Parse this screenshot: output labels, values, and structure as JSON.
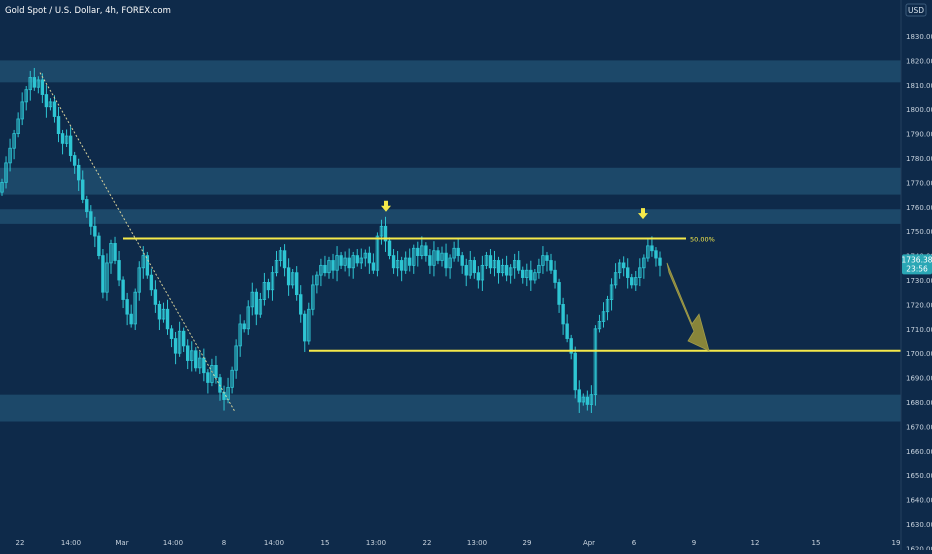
{
  "header": {
    "title": "Gold Spot / U.S. Dollar, 4h, FOREX.com"
  },
  "price_axis": {
    "currency": "USD",
    "price_tag": "1736.38",
    "countdown": "23:56"
  },
  "colors": {
    "background": "#0e2a4a",
    "zone": "#1f4e6f",
    "candle": "#2ec5d3",
    "level": "#f5e94a",
    "arrow": "#8f8a3a",
    "price_tag": "#2aa7b5"
  },
  "icons": [
    "arrow-down-marker-icon",
    "arrow-down-marker-icon",
    "projection-arrow-icon"
  ],
  "chart_data": {
    "type": "candlestick",
    "ylim": [
      1615,
      1835
    ],
    "y_ticks": [
      1620,
      1630,
      1640,
      1650,
      1660,
      1670,
      1680,
      1690,
      1700,
      1710,
      1720,
      1730,
      1740,
      1750,
      1760,
      1770,
      1780,
      1790,
      1800,
      1810,
      1820,
      1830
    ],
    "x_ticks": [
      "22",
      "14:00",
      "Mar",
      "14:00",
      "8",
      "14:00",
      "15",
      "13:00",
      "22",
      "13:00",
      "29",
      "Apr",
      "6",
      "9",
      "12",
      "15",
      "19"
    ],
    "zones": [
      {
        "low": 1811,
        "high": 1820
      },
      {
        "low": 1765,
        "high": 1776
      },
      {
        "low": 1753,
        "high": 1759
      },
      {
        "low": 1672,
        "high": 1683
      }
    ],
    "levels": [
      {
        "price": 1747,
        "label": "50.00%"
      },
      {
        "price": 1701,
        "label": ""
      }
    ],
    "closes": [
      1770,
      1778,
      1784,
      1790,
      1796,
      1803,
      1808,
      1813,
      1809,
      1812,
      1806,
      1801,
      1803,
      1797,
      1790,
      1786,
      1789,
      1781,
      1777,
      1771,
      1763,
      1758,
      1752,
      1748,
      1740,
      1725,
      1737,
      1745,
      1738,
      1730,
      1722,
      1716,
      1712,
      1725,
      1735,
      1740,
      1732,
      1726,
      1720,
      1714,
      1718,
      1710,
      1706,
      1700,
      1709,
      1703,
      1697,
      1701,
      1694,
      1698,
      1692,
      1688,
      1695,
      1690,
      1684,
      1681,
      1686,
      1693,
      1703,
      1712,
      1710,
      1719,
      1725,
      1716,
      1722,
      1729,
      1726,
      1733,
      1738,
      1742,
      1735,
      1728,
      1733,
      1724,
      1716,
      1705,
      1718,
      1728,
      1732,
      1736,
      1733,
      1738,
      1734,
      1740,
      1736,
      1739,
      1735,
      1740,
      1737,
      1739,
      1741,
      1737,
      1734,
      1748,
      1752,
      1746,
      1740,
      1735,
      1738,
      1734,
      1739,
      1736,
      1743,
      1740,
      1744,
      1740,
      1736,
      1742,
      1738,
      1741,
      1735,
      1739,
      1743,
      1740,
      1736,
      1732,
      1738,
      1733,
      1730,
      1736,
      1740,
      1735,
      1738,
      1733,
      1736,
      1732,
      1735,
      1738,
      1734,
      1731,
      1734,
      1730,
      1733,
      1736,
      1740,
      1738,
      1734,
      1729,
      1720,
      1712,
      1706,
      1700,
      1685,
      1680,
      1682,
      1679,
      1683,
      1710,
      1713,
      1717,
      1722,
      1728,
      1733,
      1737,
      1735,
      1731,
      1728,
      1731,
      1735,
      1739,
      1744,
      1742,
      1739,
      1736
    ]
  }
}
